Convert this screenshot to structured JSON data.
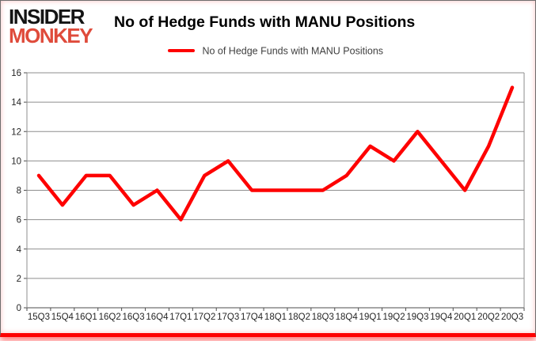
{
  "logo": {
    "line1": "INSIDER",
    "line2": "MONKEY"
  },
  "header": {
    "title": "No of Hedge Funds with MANU Positions"
  },
  "legend": {
    "label": "No of Hedge Funds with MANU Positions"
  },
  "colors": {
    "series": "#fe0000",
    "logo_text": "#141414",
    "logo_accent": "#df4b3b",
    "gridline": "#8e8e8e",
    "axis_line": "#4d4d4d",
    "axis_text": "#262626",
    "frame_glow": "#fe0000"
  },
  "chart_data": {
    "type": "line",
    "title": "No of Hedge Funds with MANU Positions",
    "legend_entries": [
      "No of Hedge Funds with MANU Positions"
    ],
    "legend_position": "top",
    "categories": [
      "15Q3",
      "15Q4",
      "16Q1",
      "16Q2",
      "16Q3",
      "16Q4",
      "17Q1",
      "17Q2",
      "17Q3",
      "17Q4",
      "18Q1",
      "18Q2",
      "18Q3",
      "18Q4",
      "19Q1",
      "19Q2",
      "19Q3",
      "19Q4",
      "20Q1",
      "20Q2",
      "20Q3"
    ],
    "values": [
      9,
      7,
      9,
      9,
      7,
      8,
      6,
      9,
      10,
      8,
      8,
      8,
      8,
      9,
      11,
      10,
      12,
      10,
      8,
      11,
      15
    ],
    "xlabel": "",
    "ylabel": "",
    "ylim": [
      0,
      16
    ],
    "yticks": [
      0,
      2,
      4,
      6,
      8,
      10,
      12,
      14,
      16
    ],
    "grid": true
  }
}
